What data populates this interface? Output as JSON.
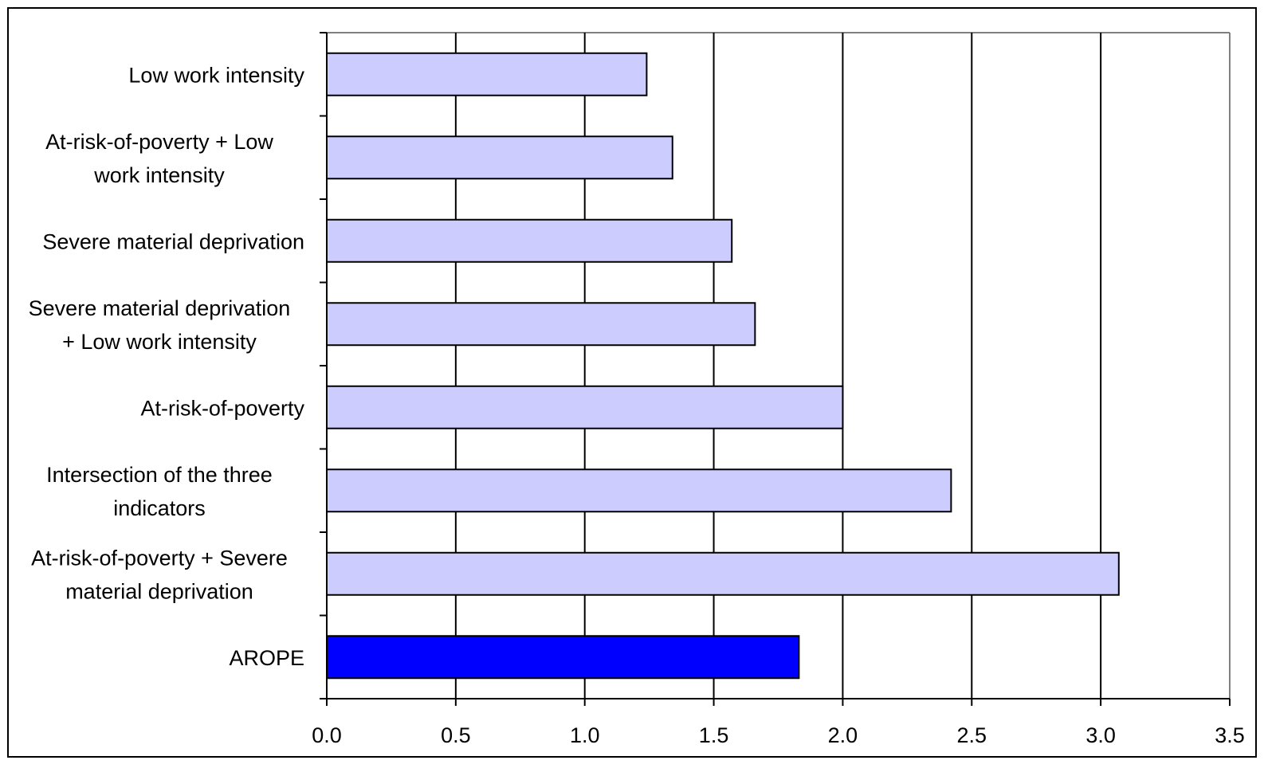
{
  "chart_data": {
    "type": "bar",
    "orientation": "horizontal",
    "categories": [
      "Low work intensity",
      "At-risk-of-poverty + Low work intensity",
      "Severe material deprivation",
      "Severe material deprivation + Low work intensity",
      "At-risk-of-poverty",
      "Intersection of the three indicators",
      "At-risk-of-poverty + Severe material deprivation",
      "AROPE"
    ],
    "category_label_lines": [
      [
        "Low work intensity"
      ],
      [
        "At-risk-of-poverty + Low",
        "work intensity"
      ],
      [
        "Severe material deprivation"
      ],
      [
        "Severe material deprivation",
        "+ Low work intensity"
      ],
      [
        "At-risk-of-poverty"
      ],
      [
        "Intersection of the three",
        "indicators"
      ],
      [
        "At-risk-of-poverty + Severe",
        "material deprivation"
      ],
      [
        "AROPE"
      ]
    ],
    "values": [
      1.24,
      1.34,
      1.57,
      1.66,
      2.0,
      2.42,
      3.07,
      1.83
    ],
    "bar_colors": [
      "#ccccff",
      "#ccccff",
      "#ccccff",
      "#ccccff",
      "#ccccff",
      "#ccccff",
      "#ccccff",
      "#0000ff"
    ],
    "xlim": [
      0,
      3.5
    ],
    "x_ticks": [
      "0.0",
      "0.5",
      "1.0",
      "1.5",
      "2.0",
      "2.5",
      "3.0",
      "3.5"
    ],
    "x_tick_values": [
      0,
      0.5,
      1.0,
      1.5,
      2.0,
      2.5,
      3.0,
      3.5
    ],
    "grid": "vertical",
    "title": "",
    "xlabel": "",
    "ylabel": "",
    "legend": "none"
  }
}
